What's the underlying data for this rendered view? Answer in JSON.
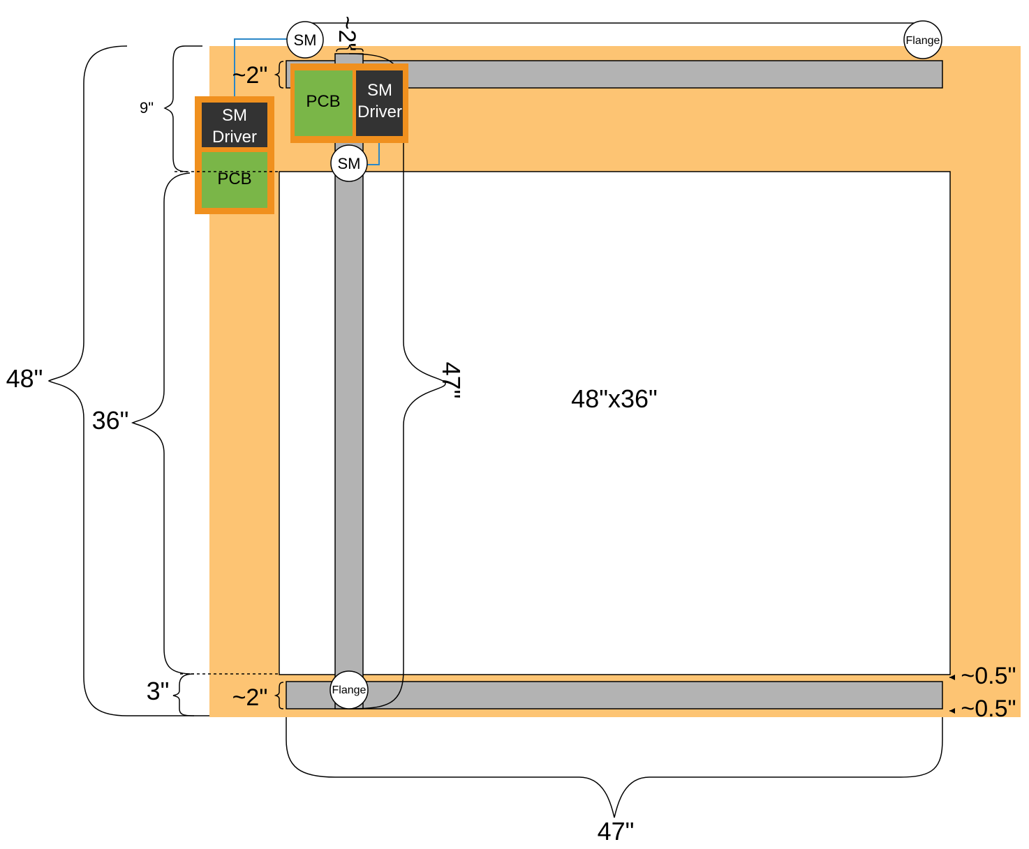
{
  "colors": {
    "table": "#fdc473",
    "rail": "#b3b3b3",
    "pcb": "#7ab648",
    "driver": "#333333",
    "housing": "#f0901e",
    "wire": "#2a87c8"
  },
  "labels": {
    "work_area": "48\"x36\"",
    "sm_top": "SM",
    "sm_mid": "SM",
    "flange_top": "Flange",
    "flange_bottom": "Flange",
    "pcb_left": "PCB",
    "pcb_top": "PCB",
    "driver_left_line1": "SM",
    "driver_left_line2": "Driver",
    "driver_top_line1": "SM",
    "driver_top_line2": "Driver"
  },
  "dimensions": {
    "total_height": "48\"",
    "inner_height": "36\"",
    "top_margin": "9\"",
    "bottom_margin": "3\"",
    "rail_width_top": "~2\"",
    "rail_width_bottom": "~2\"",
    "rail_width_vertical": "~2\"",
    "vertical_rail_length": "47\"",
    "horizontal_rail_length": "47\"",
    "gap_top": "~0.5\"",
    "gap_bottom": "~0.5\""
  }
}
